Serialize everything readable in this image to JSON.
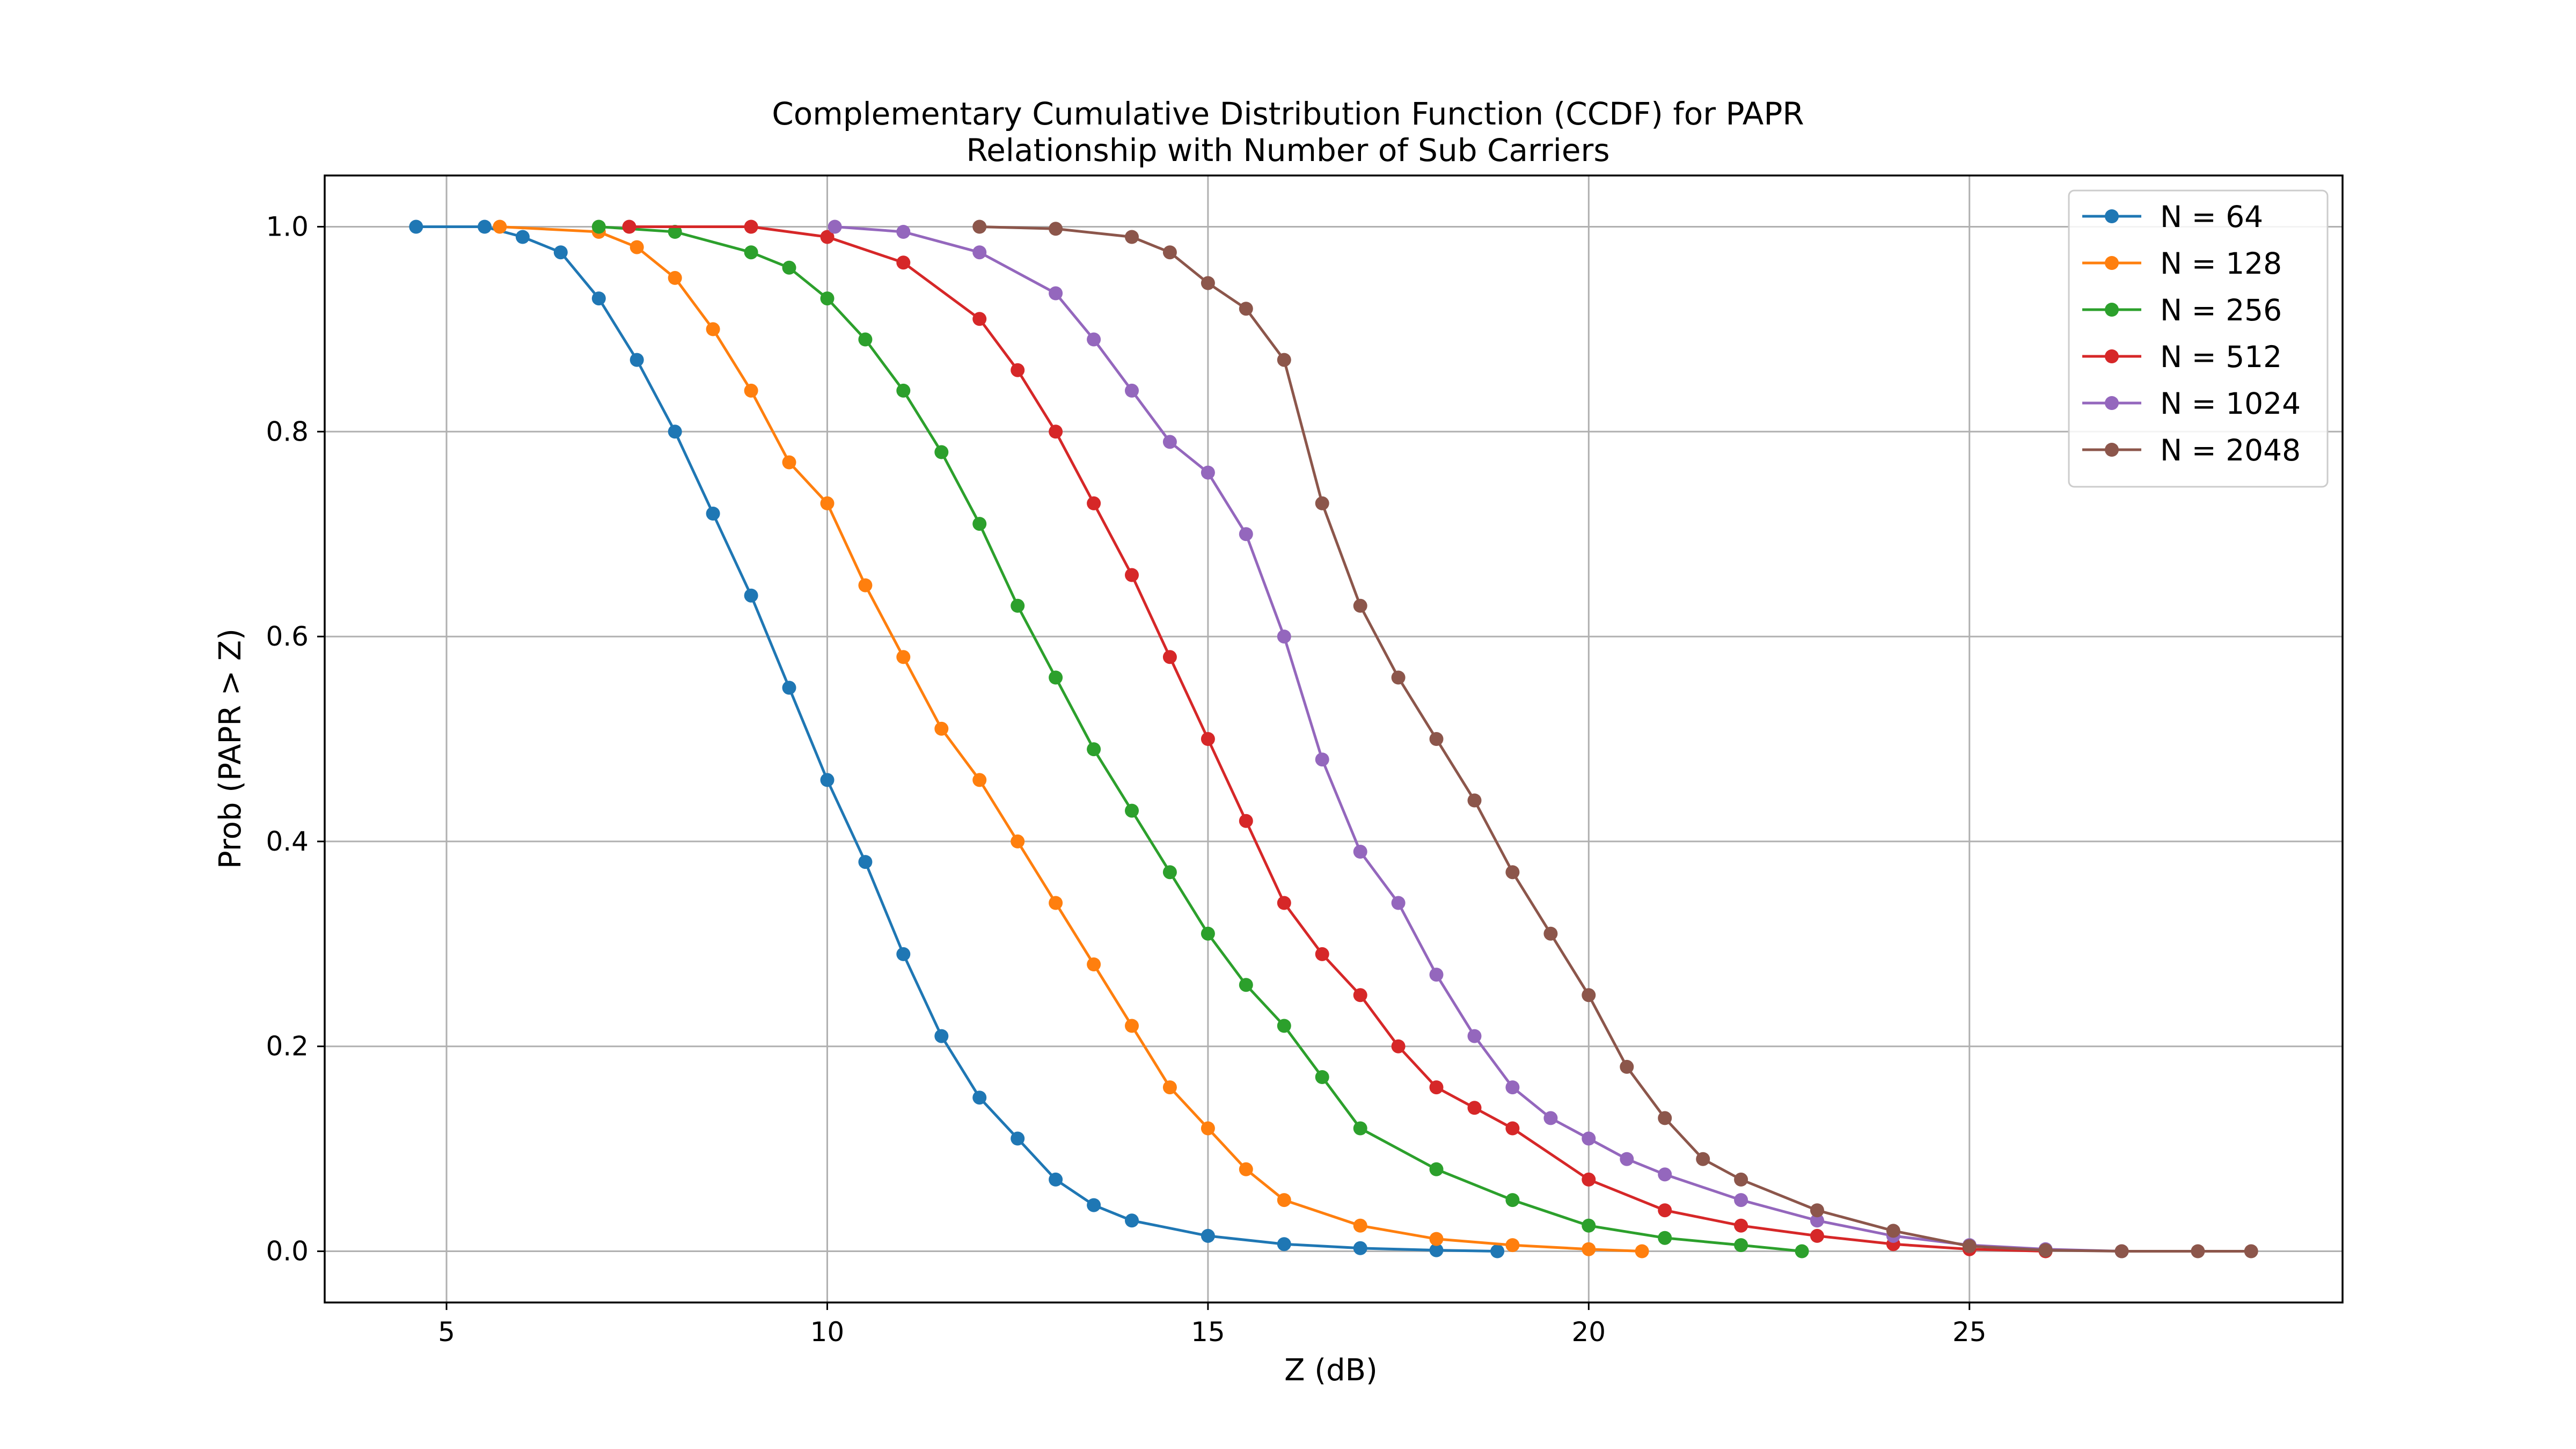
{
  "chart_data": {
    "type": "line",
    "title": "Complementary Cumulative Distribution Function (CCDF) for PAPR",
    "subtitle": "Relationship with Number of Sub Carriers",
    "xlabel": "Z (dB)",
    "ylabel": "Prob (PAPR > Z)",
    "xlim": [
      3.4,
      29.9
    ],
    "ylim": [
      -0.05,
      1.05
    ],
    "xticks": [
      5,
      10,
      15,
      20,
      25
    ],
    "yticks": [
      0.0,
      0.2,
      0.4,
      0.6,
      0.8,
      1.0
    ],
    "xtick_labels": [
      "5",
      "10",
      "15",
      "20",
      "25"
    ],
    "ytick_labels": [
      "0.0",
      "0.2",
      "0.4",
      "0.6",
      "0.8",
      "1.0"
    ],
    "grid": true,
    "legend_position": "top-right",
    "markers": "circle",
    "series": [
      {
        "name": "N = 64",
        "color": "#1f77b4",
        "x": [
          4.6,
          5.5,
          6.0,
          6.5,
          7.0,
          7.5,
          8.0,
          8.5,
          9.0,
          9.5,
          10.0,
          10.5,
          11.0,
          11.5,
          12.0,
          12.5,
          13.0,
          13.5,
          14.0,
          15.0,
          16.0,
          17.0,
          18.0,
          18.8
        ],
        "y": [
          1.0,
          1.0,
          0.99,
          0.975,
          0.93,
          0.87,
          0.8,
          0.72,
          0.64,
          0.55,
          0.46,
          0.38,
          0.29,
          0.21,
          0.15,
          0.11,
          0.07,
          0.045,
          0.03,
          0.015,
          0.007,
          0.003,
          0.001,
          0.0
        ]
      },
      {
        "name": "N = 128",
        "color": "#ff7f0e",
        "x": [
          5.7,
          7.0,
          7.5,
          8.0,
          8.5,
          9.0,
          9.5,
          10.0,
          10.5,
          11.0,
          11.5,
          12.0,
          12.5,
          13.0,
          13.5,
          14.0,
          14.5,
          15.0,
          15.5,
          16.0,
          17.0,
          18.0,
          19.0,
          20.0,
          20.7
        ],
        "y": [
          1.0,
          0.995,
          0.98,
          0.95,
          0.9,
          0.84,
          0.77,
          0.73,
          0.65,
          0.58,
          0.51,
          0.46,
          0.4,
          0.34,
          0.28,
          0.22,
          0.16,
          0.12,
          0.08,
          0.05,
          0.025,
          0.012,
          0.006,
          0.002,
          0.0
        ]
      },
      {
        "name": "N = 256",
        "color": "#2ca02c",
        "x": [
          7.0,
          8.0,
          9.0,
          9.5,
          10.0,
          10.5,
          11.0,
          11.5,
          12.0,
          12.5,
          13.0,
          13.5,
          14.0,
          14.5,
          15.0,
          15.5,
          16.0,
          16.5,
          17.0,
          18.0,
          19.0,
          20.0,
          21.0,
          22.0,
          22.8
        ],
        "y": [
          1.0,
          0.995,
          0.975,
          0.96,
          0.93,
          0.89,
          0.84,
          0.78,
          0.71,
          0.63,
          0.56,
          0.49,
          0.43,
          0.37,
          0.31,
          0.26,
          0.22,
          0.17,
          0.12,
          0.08,
          0.05,
          0.025,
          0.013,
          0.006,
          0.0
        ]
      },
      {
        "name": "N = 512",
        "color": "#d62728",
        "x": [
          7.4,
          9.0,
          10.0,
          11.0,
          12.0,
          12.5,
          13.0,
          13.5,
          14.0,
          14.5,
          15.0,
          15.5,
          16.0,
          16.5,
          17.0,
          17.5,
          18.0,
          18.5,
          19.0,
          20.0,
          21.0,
          22.0,
          23.0,
          24.0,
          25.0,
          26.0
        ],
        "y": [
          1.0,
          1.0,
          0.99,
          0.965,
          0.91,
          0.86,
          0.8,
          0.73,
          0.66,
          0.58,
          0.5,
          0.42,
          0.34,
          0.29,
          0.25,
          0.2,
          0.16,
          0.14,
          0.12,
          0.07,
          0.04,
          0.025,
          0.015,
          0.007,
          0.002,
          0.0
        ]
      },
      {
        "name": "N = 1024",
        "color": "#9467bd",
        "x": [
          10.1,
          11.0,
          12.0,
          13.0,
          13.5,
          14.0,
          14.5,
          15.0,
          15.5,
          16.0,
          16.5,
          17.0,
          17.5,
          18.0,
          18.5,
          19.0,
          19.5,
          20.0,
          20.5,
          21.0,
          22.0,
          23.0,
          24.0,
          25.0,
          26.0,
          27.0
        ],
        "y": [
          1.0,
          0.995,
          0.975,
          0.935,
          0.89,
          0.84,
          0.79,
          0.76,
          0.7,
          0.6,
          0.48,
          0.39,
          0.34,
          0.27,
          0.21,
          0.16,
          0.13,
          0.11,
          0.09,
          0.075,
          0.05,
          0.03,
          0.015,
          0.006,
          0.002,
          0.0
        ]
      },
      {
        "name": "N = 2048",
        "color": "#8c564b",
        "x": [
          12.0,
          13.0,
          14.0,
          14.5,
          15.0,
          15.5,
          16.0,
          16.5,
          17.0,
          17.5,
          18.0,
          18.5,
          19.0,
          19.5,
          20.0,
          20.5,
          21.0,
          21.5,
          22.0,
          23.0,
          24.0,
          25.0,
          26.0,
          27.0,
          28.0,
          28.7
        ],
        "y": [
          1.0,
          0.998,
          0.99,
          0.975,
          0.945,
          0.92,
          0.87,
          0.73,
          0.63,
          0.56,
          0.5,
          0.44,
          0.37,
          0.31,
          0.25,
          0.18,
          0.13,
          0.09,
          0.07,
          0.04,
          0.02,
          0.005,
          0.001,
          0.0,
          0.0,
          0.0
        ]
      }
    ]
  }
}
